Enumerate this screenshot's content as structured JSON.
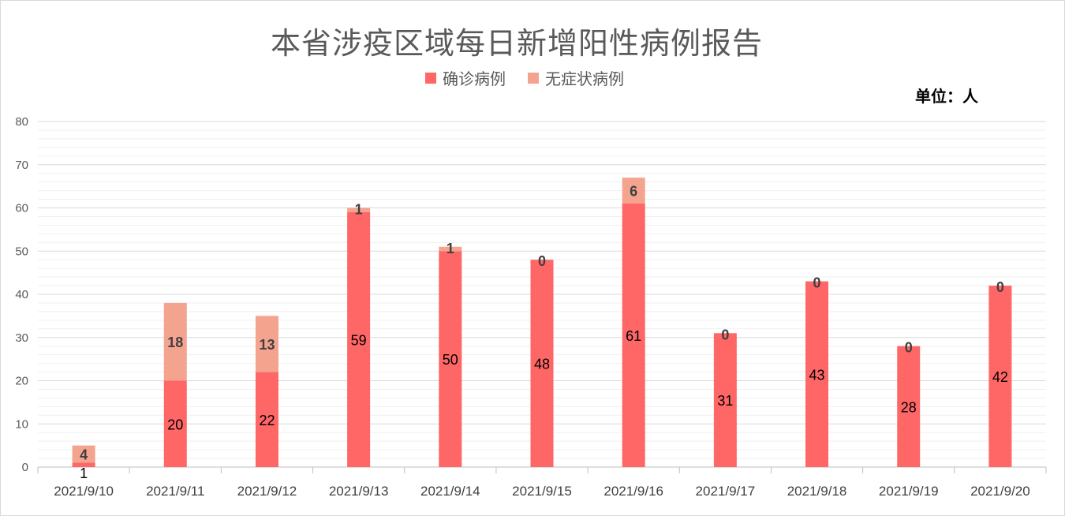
{
  "chart_data": {
    "type": "bar",
    "stacked": true,
    "title": "本省涉疫区域每日新增阳性病例报告",
    "unit_label": "单位：人",
    "categories": [
      "2021/9/10",
      "2021/9/11",
      "2021/9/12",
      "2021/9/13",
      "2021/9/14",
      "2021/9/15",
      "2021/9/16",
      "2021/9/17",
      "2021/9/18",
      "2021/9/19",
      "2021/9/20"
    ],
    "series": [
      {
        "name": "确诊病例",
        "color": "#ff6666",
        "values": [
          1,
          20,
          22,
          59,
          50,
          48,
          61,
          31,
          43,
          28,
          42
        ]
      },
      {
        "name": "无症状病例",
        "color": "#f4a38f",
        "values": [
          4,
          18,
          13,
          1,
          1,
          0,
          6,
          0,
          0,
          0,
          0
        ]
      }
    ],
    "ylim": [
      0,
      80
    ],
    "yticks": [
      "0",
      "10",
      "20",
      "30",
      "40",
      "50",
      "60",
      "70",
      "80"
    ],
    "grid": true,
    "legend_position": "top"
  }
}
